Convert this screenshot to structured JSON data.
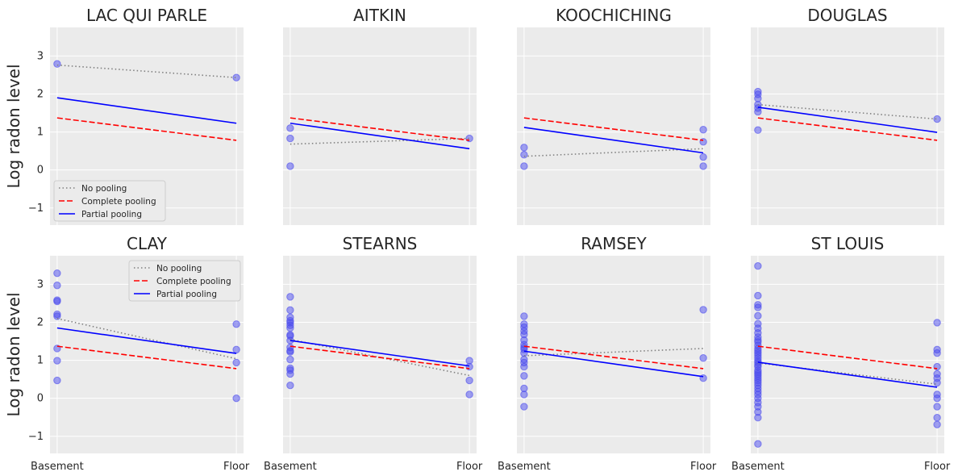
{
  "chart_data": {
    "type": "scatter",
    "ylabel": "Log radon level",
    "ylim": [
      -1.45,
      3.75
    ],
    "yticks": [
      -1,
      0,
      1,
      2,
      3
    ],
    "xlim": [
      -0.04,
      1.04
    ],
    "xticks": [
      {
        "x": 0,
        "label": "Basement"
      },
      {
        "x": 1,
        "label": "Floor"
      }
    ],
    "grid": true,
    "legend": {
      "entries": [
        {
          "name": "No pooling",
          "color": "#808080",
          "style": "dotted"
        },
        {
          "name": "Complete pooling",
          "color": "#ff0000",
          "style": "dashed"
        },
        {
          "name": "Partial pooling",
          "color": "#0000ff",
          "style": "solid"
        }
      ]
    },
    "marker_color": "#4a4aee",
    "panels": [
      {
        "title": "LAC QUI PARLE",
        "legend_position": "lower-left",
        "points": [
          [
            0,
            2.79
          ],
          [
            1,
            2.43
          ]
        ],
        "no_pooling": [
          2.76,
          2.43
        ],
        "complete_pooling": [
          1.37,
          0.78
        ],
        "partial_pooling": [
          1.9,
          1.23
        ]
      },
      {
        "title": "AITKIN",
        "points": [
          [
            0,
            0.1
          ],
          [
            0,
            0.83
          ],
          [
            0,
            1.1
          ],
          [
            1,
            0.83
          ]
        ],
        "no_pooling": [
          0.68,
          0.83
        ],
        "complete_pooling": [
          1.37,
          0.78
        ],
        "partial_pooling": [
          1.23,
          0.56
        ]
      },
      {
        "title": "KOOCHICHING",
        "points": [
          [
            0,
            0.1
          ],
          [
            0,
            0.4
          ],
          [
            0,
            0.59
          ],
          [
            1,
            0.1
          ],
          [
            1,
            0.34
          ],
          [
            1,
            0.74
          ],
          [
            1,
            1.06
          ]
        ],
        "no_pooling": [
          0.36,
          0.56
        ],
        "complete_pooling": [
          1.37,
          0.78
        ],
        "partial_pooling": [
          1.12,
          0.45
        ]
      },
      {
        "title": "DOUGLAS",
        "points": [
          [
            0,
            1.05
          ],
          [
            0,
            1.53
          ],
          [
            0,
            1.63
          ],
          [
            0,
            1.72
          ],
          [
            0,
            1.88
          ],
          [
            0,
            1.99
          ],
          [
            0,
            2.06
          ],
          [
            1,
            1.34
          ]
        ],
        "no_pooling": [
          1.72,
          1.34
        ],
        "complete_pooling": [
          1.37,
          0.78
        ],
        "partial_pooling": [
          1.65,
          0.99
        ]
      },
      {
        "title": "CLAY",
        "legend_position": "top-right",
        "points": [
          [
            0,
            0.47
          ],
          [
            0,
            0.99
          ],
          [
            0,
            1.31
          ],
          [
            0,
            2.16
          ],
          [
            0,
            2.21
          ],
          [
            0,
            2.55
          ],
          [
            0,
            2.58
          ],
          [
            0,
            2.97
          ],
          [
            0,
            3.29
          ],
          [
            1,
            0.0
          ],
          [
            1,
            0.94
          ],
          [
            1,
            1.28
          ],
          [
            1,
            1.95
          ]
        ],
        "no_pooling": [
          2.1,
          1.04
        ],
        "complete_pooling": [
          1.37,
          0.78
        ],
        "partial_pooling": [
          1.85,
          1.18
        ]
      },
      {
        "title": "STEARNS",
        "points": [
          [
            0,
            0.34
          ],
          [
            0,
            0.64
          ],
          [
            0,
            0.74
          ],
          [
            0,
            0.79
          ],
          [
            0,
            1.02
          ],
          [
            0,
            1.22
          ],
          [
            0,
            1.25
          ],
          [
            0,
            1.34
          ],
          [
            0,
            1.52
          ],
          [
            0,
            1.64
          ],
          [
            0,
            1.67
          ],
          [
            0,
            1.85
          ],
          [
            0,
            1.92
          ],
          [
            0,
            1.99
          ],
          [
            0,
            2.04
          ],
          [
            0,
            2.13
          ],
          [
            0,
            2.32
          ],
          [
            0,
            2.67
          ],
          [
            1,
            0.1
          ],
          [
            1,
            0.47
          ],
          [
            1,
            0.83
          ],
          [
            1,
            0.99
          ]
        ],
        "no_pooling": [
          1.55,
          0.6
        ],
        "complete_pooling": [
          1.37,
          0.78
        ],
        "partial_pooling": [
          1.52,
          0.85
        ]
      },
      {
        "title": "RAMSEY",
        "points": [
          [
            0,
            -0.22
          ],
          [
            0,
            0.1
          ],
          [
            0,
            0.26
          ],
          [
            0,
            0.59
          ],
          [
            0,
            0.83
          ],
          [
            0,
            0.94
          ],
          [
            0,
            1.02
          ],
          [
            0,
            1.19
          ],
          [
            0,
            1.29
          ],
          [
            0,
            1.34
          ],
          [
            0,
            1.41
          ],
          [
            0,
            1.53
          ],
          [
            0,
            1.68
          ],
          [
            0,
            1.77
          ],
          [
            0,
            1.87
          ],
          [
            0,
            1.95
          ],
          [
            0,
            2.16
          ],
          [
            1,
            0.53
          ],
          [
            1,
            1.06
          ],
          [
            1,
            2.33
          ]
        ],
        "no_pooling": [
          1.12,
          1.31
        ],
        "complete_pooling": [
          1.37,
          0.78
        ],
        "partial_pooling": [
          1.24,
          0.57
        ]
      },
      {
        "title": "ST LOUIS",
        "points": [
          [
            0,
            -1.2
          ],
          [
            0,
            -0.51
          ],
          [
            0,
            -0.36
          ],
          [
            0,
            -0.22
          ],
          [
            0,
            -0.11
          ],
          [
            0,
            0.0
          ],
          [
            0,
            0.1
          ],
          [
            0,
            0.18
          ],
          [
            0,
            0.26
          ],
          [
            0,
            0.34
          ],
          [
            0,
            0.41
          ],
          [
            0,
            0.47
          ],
          [
            0,
            0.53
          ],
          [
            0,
            0.59
          ],
          [
            0,
            0.64
          ],
          [
            0,
            0.69
          ],
          [
            0,
            0.74
          ],
          [
            0,
            0.83
          ],
          [
            0,
            0.88
          ],
          [
            0,
            0.94
          ],
          [
            0,
            0.99
          ],
          [
            0,
            1.06
          ],
          [
            0,
            1.13
          ],
          [
            0,
            1.19
          ],
          [
            0,
            1.25
          ],
          [
            0,
            1.31
          ],
          [
            0,
            1.39
          ],
          [
            0,
            1.48
          ],
          [
            0,
            1.53
          ],
          [
            0,
            1.61
          ],
          [
            0,
            1.72
          ],
          [
            0,
            1.84
          ],
          [
            0,
            1.96
          ],
          [
            0,
            2.17
          ],
          [
            0,
            2.39
          ],
          [
            0,
            2.46
          ],
          [
            0,
            2.7
          ],
          [
            0,
            3.48
          ],
          [
            1,
            -0.69
          ],
          [
            1,
            -0.51
          ],
          [
            1,
            -0.22
          ],
          [
            1,
            0.0
          ],
          [
            1,
            0.1
          ],
          [
            1,
            0.41
          ],
          [
            1,
            0.53
          ],
          [
            1,
            0.64
          ],
          [
            1,
            0.83
          ],
          [
            1,
            1.19
          ],
          [
            1,
            1.28
          ],
          [
            1,
            1.99
          ]
        ],
        "no_pooling": [
          0.93,
          0.37
        ],
        "complete_pooling": [
          1.37,
          0.78
        ],
        "partial_pooling": [
          0.95,
          0.29
        ]
      }
    ]
  }
}
